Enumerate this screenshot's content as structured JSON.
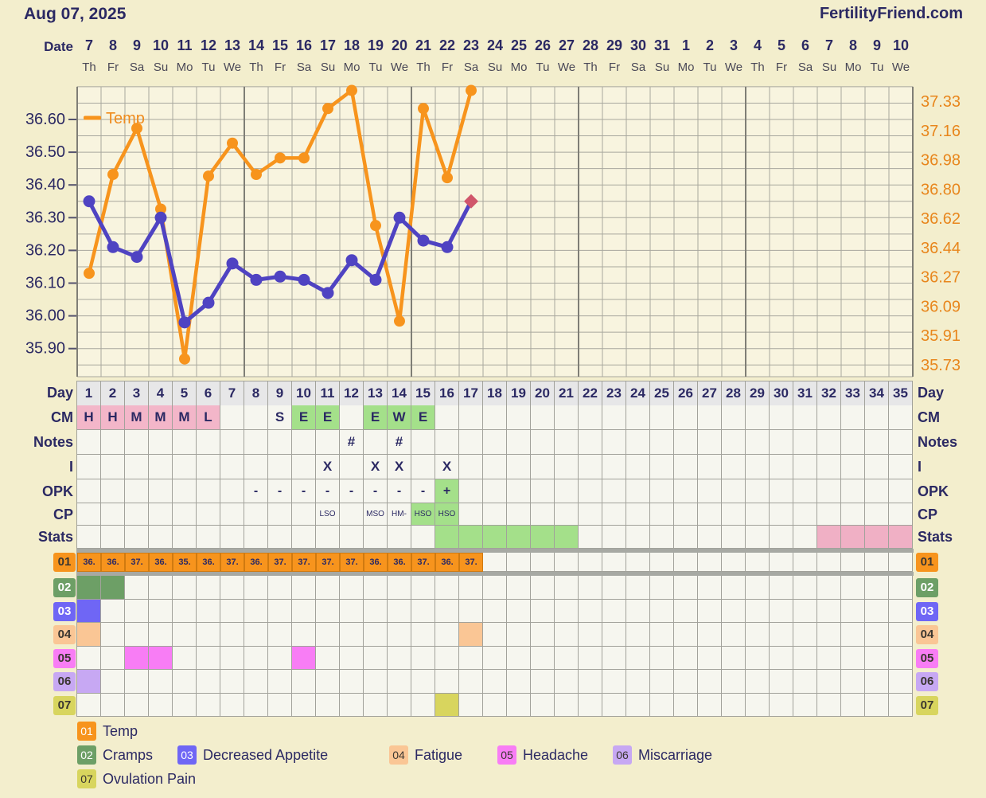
{
  "header": {
    "title": "Aug 07, 2025",
    "site": "FertilityFriend.com"
  },
  "date_header": {
    "label": "Date",
    "dates": [
      7,
      8,
      9,
      10,
      11,
      12,
      13,
      14,
      15,
      16,
      17,
      18,
      19,
      20,
      21,
      22,
      23,
      24,
      25,
      26,
      27,
      28,
      29,
      30,
      31,
      1,
      2,
      3,
      4,
      5,
      6,
      7,
      8,
      9,
      10
    ],
    "weekdays": [
      "Th",
      "Fr",
      "Sa",
      "Su",
      "Mo",
      "Tu",
      "We",
      "Th",
      "Fr",
      "Sa",
      "Su",
      "Mo",
      "Tu",
      "We",
      "Th",
      "Fr",
      "Sa",
      "Su",
      "Mo",
      "Tu",
      "We",
      "Th",
      "Fr",
      "Sa",
      "Su",
      "Mo",
      "Tu",
      "We",
      "Th",
      "Fr",
      "Sa",
      "Su",
      "Mo",
      "Tu",
      "We"
    ]
  },
  "chart_data": {
    "type": "line",
    "title": "",
    "legend_label": "Temp",
    "x": [
      1,
      2,
      3,
      4,
      5,
      6,
      7,
      8,
      9,
      10,
      11,
      12,
      13,
      14,
      15,
      16,
      17
    ],
    "series": [
      {
        "name": "Temp",
        "axis": "right",
        "color_key": "temp",
        "values": [
          36.29,
          36.89,
          37.17,
          36.68,
          35.77,
          36.88,
          37.08,
          36.89,
          36.99,
          36.99,
          37.29,
          37.4,
          36.58,
          36.0,
          37.29,
          36.87,
          37.4
        ]
      },
      {
        "name": "Temp secondary",
        "axis": "left",
        "color_key": "purpleLine",
        "last_marker": "diamond",
        "values": [
          36.35,
          36.21,
          36.18,
          36.3,
          35.98,
          36.04,
          36.16,
          36.11,
          36.12,
          36.11,
          36.07,
          36.17,
          36.11,
          36.3,
          36.23,
          36.21,
          36.35
        ]
      }
    ],
    "left_axis": {
      "ticks": [
        "36.60",
        "36.50",
        "36.40",
        "36.30",
        "36.20",
        "36.10",
        "36.00",
        "35.90"
      ],
      "top_value": 36.6,
      "step": 0.1
    },
    "right_axis": {
      "ticks": [
        "37.33",
        "37.16",
        "36.98",
        "36.80",
        "36.62",
        "36.44",
        "36.27",
        "36.09",
        "35.91",
        "35.73"
      ],
      "top_value": 37.33,
      "bottom_value": 35.73
    },
    "grid": true,
    "legend_position": "top-left"
  },
  "grid": {
    "days": 35,
    "day_numbers": [
      1,
      2,
      3,
      4,
      5,
      6,
      7,
      8,
      9,
      10,
      11,
      12,
      13,
      14,
      15,
      16,
      17,
      18,
      19,
      20,
      21,
      22,
      23,
      24,
      25,
      26,
      27,
      28,
      29,
      30,
      31,
      32,
      33,
      34,
      35
    ],
    "day_label": "Day",
    "rows": [
      {
        "id": "cm",
        "label": "CM",
        "cells": [
          {
            "d": 1,
            "t": "H",
            "c": "pink"
          },
          {
            "d": 2,
            "t": "H",
            "c": "pink"
          },
          {
            "d": 3,
            "t": "M",
            "c": "pink"
          },
          {
            "d": 4,
            "t": "M",
            "c": "pink"
          },
          {
            "d": 5,
            "t": "M",
            "c": "pink"
          },
          {
            "d": 6,
            "t": "L",
            "c": "pink"
          },
          {
            "d": 9,
            "t": "S"
          },
          {
            "d": 10,
            "t": "E",
            "c": "green"
          },
          {
            "d": 11,
            "t": "E",
            "c": "green"
          },
          {
            "d": 13,
            "t": "E",
            "c": "green"
          },
          {
            "d": 14,
            "t": "W",
            "c": "green"
          },
          {
            "d": 15,
            "t": "E",
            "c": "green"
          }
        ]
      },
      {
        "id": "notes",
        "label": "Notes",
        "cells": [
          {
            "d": 12,
            "t": "#"
          },
          {
            "d": 14,
            "t": "#"
          }
        ]
      },
      {
        "id": "i",
        "label": "I",
        "cells": [
          {
            "d": 11,
            "t": "X"
          },
          {
            "d": 13,
            "t": "X"
          },
          {
            "d": 14,
            "t": "X"
          },
          {
            "d": 16,
            "t": "X"
          }
        ]
      },
      {
        "id": "opk",
        "label": "OPK",
        "cells": [
          {
            "d": 8,
            "t": "-"
          },
          {
            "d": 9,
            "t": "-"
          },
          {
            "d": 10,
            "t": "-"
          },
          {
            "d": 11,
            "t": "-"
          },
          {
            "d": 12,
            "t": "-"
          },
          {
            "d": 13,
            "t": "-"
          },
          {
            "d": 14,
            "t": "-"
          },
          {
            "d": 15,
            "t": "-"
          },
          {
            "d": 16,
            "t": "+",
            "c": "green"
          }
        ]
      },
      {
        "id": "cp",
        "label": "CP",
        "small": true,
        "cells": [
          {
            "d": 11,
            "t": "LSO"
          },
          {
            "d": 13,
            "t": "MSO"
          },
          {
            "d": 14,
            "t": "HM-"
          },
          {
            "d": 15,
            "t": "HSO",
            "c": "green"
          },
          {
            "d": 16,
            "t": "HSO",
            "c": "green"
          }
        ]
      },
      {
        "id": "stats",
        "label": "Stats",
        "cells": [
          {
            "d": 16,
            "c": "green"
          },
          {
            "d": 17,
            "c": "green"
          },
          {
            "d": 18,
            "c": "green"
          },
          {
            "d": 19,
            "c": "green"
          },
          {
            "d": 20,
            "c": "green"
          },
          {
            "d": 21,
            "c": "green"
          },
          {
            "d": 32,
            "c": "statsPink"
          },
          {
            "d": 33,
            "c": "statsPink"
          },
          {
            "d": 34,
            "c": "statsPink"
          },
          {
            "d": 35,
            "c": "statsPink"
          }
        ]
      }
    ],
    "symptom_rows": [
      {
        "id": "01",
        "label": "01",
        "color_key": "temp",
        "text_cells": [
          "36.",
          "36.",
          "37.",
          "36.",
          "35.",
          "36.",
          "37.",
          "36.",
          "37.",
          "37.",
          "37.",
          "37.",
          "36.",
          "36.",
          "37.",
          "36.",
          "37."
        ]
      },
      {
        "id": "02",
        "label": "02",
        "color_key": "cramps",
        "filled": [
          1,
          2
        ]
      },
      {
        "id": "03",
        "label": "03",
        "color_key": "appetite",
        "filled": [
          1
        ]
      },
      {
        "id": "04",
        "label": "04",
        "color_key": "fatigue",
        "filled": [
          1,
          17
        ]
      },
      {
        "id": "05",
        "label": "05",
        "color_key": "headache",
        "filled": [
          3,
          4,
          10
        ]
      },
      {
        "id": "06",
        "label": "06",
        "color_key": "miscarriage",
        "filled": [
          1
        ]
      },
      {
        "id": "07",
        "label": "07",
        "color_key": "ovulation",
        "filled": [
          16
        ]
      }
    ]
  },
  "legend": {
    "items": [
      {
        "num": "01",
        "label": "Temp",
        "color_key": "temp"
      },
      {
        "num": "02",
        "label": "Cramps",
        "color_key": "cramps"
      },
      {
        "num": "03",
        "label": "Decreased Appetite",
        "color_key": "appetite"
      },
      {
        "num": "04",
        "label": "Fatigue",
        "color_key": "fatigue"
      },
      {
        "num": "05",
        "label": "Headache",
        "color_key": "headache"
      },
      {
        "num": "06",
        "label": "Miscarriage",
        "color_key": "miscarriage"
      },
      {
        "num": "07",
        "label": "Ovulation Pain",
        "color_key": "ovulation"
      }
    ]
  },
  "colors": {
    "page": "#f3eecd",
    "plot": "#f8f4df",
    "cell": "#f6f6ef",
    "dayRow": "#e7e7e8",
    "gridLine": "#a8a79e",
    "gridDark": "#7f7e76",
    "cellBorder": "#a2a29b",
    "navy": "#2b2963",
    "weekday": "#4a4857",
    "pink": "#f3b6c9",
    "green": "#a4e08a",
    "statsPink": "#f0b0c5",
    "temp": "#f7941d",
    "cramps": "#6d9f66",
    "appetite": "#6f66f5",
    "fatigue": "#fac695",
    "headache": "#f87df5",
    "miscarriage": "#c7a8f3",
    "ovulation": "#d8d55e",
    "purpleLine": "#4f43c2",
    "diamond": "#d0566b",
    "rightAxisText": "#e8861c",
    "legendText": "#ef8b1d"
  }
}
